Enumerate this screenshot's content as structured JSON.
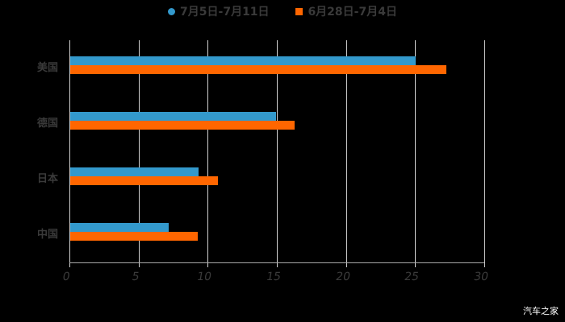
{
  "chart_data": {
    "type": "bar",
    "orientation": "horizontal",
    "title": "",
    "categories": [
      "美国",
      "德国",
      "日本",
      "中国"
    ],
    "series": [
      {
        "name": "7月5日-7月11日",
        "color": "#3399CC",
        "values": [
          25.0,
          14.9,
          9.3,
          7.1
        ]
      },
      {
        "name": "6月28日-7月4日",
        "color": "#FF6600",
        "values": [
          27.2,
          16.2,
          10.7,
          9.2
        ]
      }
    ],
    "xlabel": "",
    "ylabel": "",
    "xlim": [
      0,
      30
    ],
    "xticks": [
      "0",
      "5",
      "10",
      "15",
      "20",
      "25",
      "30"
    ],
    "grid": true,
    "legend_position": "top"
  },
  "legend": {
    "items": [
      {
        "label": "7月5日-7月11日",
        "color": "#3399CC",
        "shape": "circle"
      },
      {
        "label": "6月28日-7月4日",
        "color": "#FF6600",
        "shape": "square"
      }
    ]
  },
  "watermark": "汽车之家"
}
